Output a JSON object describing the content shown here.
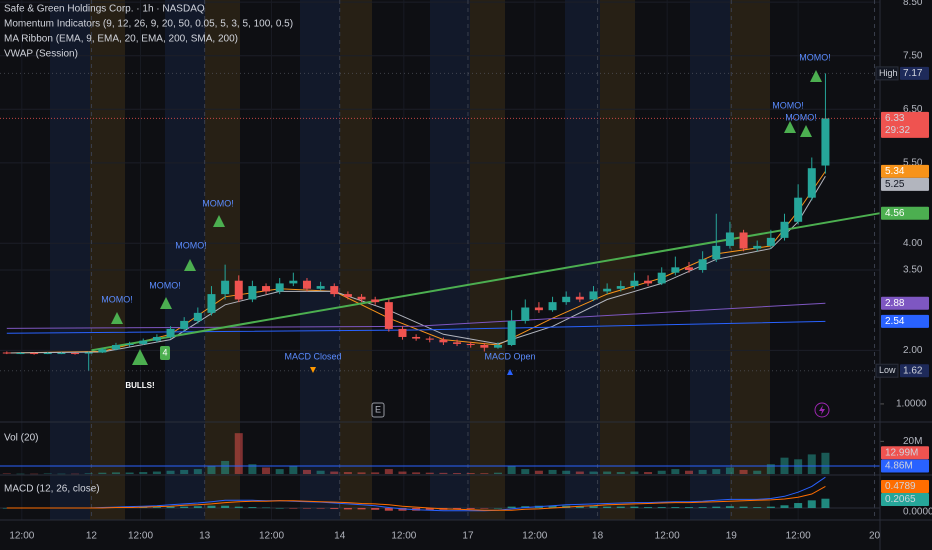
{
  "chart_data": [
    {
      "type": "candlestick",
      "title": "Safe & Green Holdings Corp. · 1h · NASDAQ",
      "indicators": [
        "Momentum Indicators (9, 12, 26, 9, 20, 50, 0.05, 5, 3, 5, 100, 0.5)",
        "MA Ribbon (EMA, 9, EMA, 20, EMA, 200, SMA, 200)",
        "VWAP (Session)"
      ],
      "up_color": "#26a69a",
      "down_color": "#ef5350",
      "open": [
        1.96,
        1.95,
        1.95,
        1.94,
        1.95,
        1.95,
        1.94,
        1.96,
        2.02,
        2.1,
        2.12,
        2.18,
        2.25,
        2.4,
        2.55,
        2.7,
        3.05,
        3.3,
        2.95,
        3.2,
        3.1,
        3.25,
        3.3,
        3.15,
        3.2,
        3.05,
        3.0,
        2.95,
        2.9,
        2.4,
        2.25,
        2.22,
        2.2,
        2.15,
        2.12,
        2.1,
        2.05,
        2.1,
        2.55,
        2.8,
        2.75,
        2.9,
        3.0,
        2.95,
        3.1,
        3.15,
        3.2,
        3.3,
        3.25,
        3.45,
        3.55,
        3.5,
        3.7,
        3.95,
        4.2,
        3.9,
        3.95,
        4.1,
        4.4,
        4.85,
        5.45
      ],
      "high": [
        1.98,
        1.97,
        1.96,
        1.97,
        1.97,
        1.96,
        1.98,
        2.05,
        2.14,
        2.16,
        2.22,
        2.3,
        2.45,
        2.62,
        2.8,
        3.2,
        3.6,
        3.4,
        3.3,
        3.25,
        3.35,
        3.45,
        3.35,
        3.28,
        3.25,
        3.1,
        3.05,
        3.0,
        2.95,
        2.45,
        2.3,
        2.26,
        2.24,
        2.2,
        2.16,
        2.14,
        2.15,
        2.75,
        2.95,
        2.9,
        3.0,
        3.1,
        3.08,
        3.2,
        3.25,
        3.3,
        3.45,
        3.4,
        3.55,
        3.75,
        3.65,
        3.85,
        4.55,
        4.4,
        4.25,
        4.05,
        4.25,
        4.55,
        5.1,
        5.6,
        7.17
      ],
      "low": [
        1.93,
        1.93,
        1.92,
        1.93,
        1.93,
        1.92,
        1.62,
        1.95,
        2.0,
        2.07,
        2.1,
        2.15,
        2.22,
        2.35,
        2.5,
        2.65,
        2.95,
        2.9,
        2.9,
        3.05,
        3.05,
        3.2,
        3.1,
        3.12,
        3.0,
        2.95,
        2.9,
        2.85,
        2.35,
        2.2,
        2.18,
        2.15,
        2.1,
        2.08,
        2.05,
        1.98,
        2.03,
        2.08,
        2.5,
        2.7,
        2.72,
        2.85,
        2.9,
        2.92,
        3.05,
        3.1,
        3.15,
        3.2,
        3.22,
        3.4,
        3.45,
        3.45,
        3.65,
        3.9,
        3.85,
        3.85,
        3.9,
        4.05,
        4.35,
        4.8,
        5.3
      ],
      "close": [
        1.95,
        1.95,
        1.94,
        1.95,
        1.95,
        1.94,
        1.96,
        2.02,
        2.1,
        2.12,
        2.18,
        2.25,
        2.4,
        2.55,
        2.7,
        3.05,
        3.3,
        2.95,
        3.2,
        3.1,
        3.25,
        3.3,
        3.15,
        3.2,
        3.05,
        3.0,
        2.95,
        2.9,
        2.4,
        2.25,
        2.22,
        2.2,
        2.15,
        2.12,
        2.1,
        2.05,
        2.1,
        2.55,
        2.8,
        2.75,
        2.9,
        3.0,
        2.95,
        3.1,
        3.15,
        3.2,
        3.3,
        3.25,
        3.45,
        3.55,
        3.5,
        3.7,
        3.95,
        4.2,
        3.9,
        3.95,
        4.1,
        4.4,
        4.85,
        5.4,
        6.33
      ],
      "xlim": [
        -0.5,
        64
      ],
      "xticks": [
        {
          "value": 1.1,
          "label": "12:00"
        },
        {
          "value": 6.2,
          "label": "12"
        },
        {
          "value": 9.8,
          "label": "12:00"
        },
        {
          "value": 14.5,
          "label": "13"
        },
        {
          "value": 19.4,
          "label": "12:00"
        },
        {
          "value": 24.4,
          "label": "14"
        },
        {
          "value": 29.1,
          "label": "12:00"
        },
        {
          "value": 33.8,
          "label": "17"
        },
        {
          "value": 38.7,
          "label": "12:00"
        },
        {
          "value": 43.3,
          "label": "18"
        },
        {
          "value": 48.4,
          "label": "12:00"
        },
        {
          "value": 53.1,
          "label": "19"
        },
        {
          "value": 58,
          "label": "12:00"
        },
        {
          "value": 63.6,
          "label": "20"
        }
      ],
      "ylim": [
        0.7,
        8.54
      ],
      "yticks": [
        {
          "value": 2,
          "label": "2.00"
        },
        {
          "value": 3.5,
          "label": "3.50"
        },
        {
          "value": 4,
          "label": "4.00"
        },
        {
          "value": 5.5,
          "label": "5.50"
        },
        {
          "value": 6.5,
          "label": "6.50"
        },
        {
          "value": 7.5,
          "label": "7.50"
        },
        {
          "value": 8.5,
          "label": "8.50"
        }
      ],
      "y2lim": [
        0.7,
        8.54
      ],
      "y2ticks": [
        {
          "value": 1,
          "label": "1.0000"
        }
      ],
      "grid": true,
      "overlays": [
        {
          "color": "#f7931a",
          "x": [
            0,
            7,
            12,
            16,
            20,
            24,
            28,
            32,
            36,
            40,
            44,
            48,
            52,
            56,
            58,
            60
          ],
          "values": [
            1.95,
            1.98,
            2.3,
            3.0,
            3.15,
            3.1,
            2.6,
            2.2,
            2.1,
            2.6,
            3.05,
            3.35,
            3.8,
            3.95,
            4.6,
            5.34
          ]
        },
        {
          "color": "#b2b5be",
          "x": [
            0,
            7,
            12,
            16,
            20,
            24,
            28,
            32,
            36,
            40,
            44,
            48,
            52,
            56,
            58,
            60
          ],
          "values": [
            1.95,
            1.97,
            2.2,
            2.85,
            3.1,
            3.1,
            2.75,
            2.3,
            2.12,
            2.45,
            2.95,
            3.25,
            3.7,
            3.9,
            4.4,
            5.25
          ]
        },
        {
          "color": "#7e57c2",
          "x": [
            0,
            30,
            60
          ],
          "values": [
            2.41,
            2.45,
            2.88
          ]
        },
        {
          "color": "#2962ff",
          "x": [
            0,
            30,
            60
          ],
          "values": [
            2.32,
            2.38,
            2.54
          ]
        }
      ],
      "trendline": {
        "color": "#4caf50",
        "x": [
          6.2,
          64
        ],
        "values": [
          2.0,
          4.56
        ]
      },
      "markers": {
        "high": {
          "tag": "High",
          "value": 7.17
        },
        "low": {
          "tag": "Low",
          "value": 1.62
        },
        "last": {
          "value": 6.33,
          "countdown": "29:32"
        }
      },
      "signals": [
        "MOMO!",
        "MOMO!",
        "MOMO!",
        "MOMO!",
        "MOMO!",
        "MOMO!",
        "MOMO!",
        "BULLS!",
        "4",
        "MACD Closed",
        "MACD Open",
        "E"
      ]
    },
    {
      "type": "bar",
      "title": "Vol (20)",
      "values": [
        0.3,
        0.2,
        0.2,
        0.3,
        0.2,
        0.2,
        0.4,
        0.8,
        1.0,
        0.9,
        1.2,
        1.5,
        2.0,
        2.5,
        3.0,
        5.0,
        8.0,
        25.0,
        6.0,
        4.0,
        3.0,
        5.0,
        2.5,
        2.0,
        1.5,
        1.2,
        1.0,
        1.0,
        3.0,
        1.5,
        1.0,
        0.8,
        0.7,
        0.6,
        0.6,
        0.5,
        0.8,
        5.0,
        3.0,
        2.0,
        2.5,
        2.0,
        1.5,
        1.5,
        1.5,
        1.2,
        1.5,
        1.2,
        2.0,
        3.0,
        2.0,
        2.5,
        3.0,
        4.0,
        2.5,
        2.0,
        6.0,
        10.0,
        9.0,
        12.0,
        12.99
      ],
      "value_labels": [
        null,
        null,
        null,
        null,
        null,
        null,
        null,
        null,
        null,
        null,
        null,
        null,
        null,
        null,
        null,
        null,
        null,
        null,
        null,
        null,
        null,
        null,
        null,
        null,
        null,
        null,
        null,
        null,
        null,
        null,
        null,
        null,
        null,
        null,
        null,
        null,
        null,
        null,
        null,
        null,
        null,
        null,
        null,
        null,
        null,
        null,
        null,
        null,
        null,
        null,
        null,
        null,
        null,
        null,
        null,
        null,
        null,
        null,
        null,
        null,
        "12.99M"
      ],
      "ylim": [
        0,
        30
      ],
      "yticks": [
        {
          "value": 20,
          "label": "20M"
        }
      ],
      "ma": {
        "value": 4.86,
        "label": "4.86M",
        "color": "#2962ff"
      }
    },
    {
      "type": "macd",
      "title": "MACD (12, 26, close)",
      "macd": [
        0,
        0,
        0,
        0,
        0,
        0,
        0,
        0.01,
        0.02,
        0.03,
        0.04,
        0.05,
        0.07,
        0.09,
        0.11,
        0.14,
        0.17,
        0.17,
        0.17,
        0.16,
        0.16,
        0.15,
        0.14,
        0.13,
        0.11,
        0.09,
        0.07,
        0.05,
        0.01,
        -0.02,
        -0.04,
        -0.05,
        -0.06,
        -0.06,
        -0.06,
        -0.06,
        -0.05,
        -0.02,
        0.01,
        0.03,
        0.05,
        0.07,
        0.08,
        0.09,
        0.1,
        0.11,
        0.12,
        0.12,
        0.13,
        0.14,
        0.14,
        0.15,
        0.17,
        0.19,
        0.19,
        0.19,
        0.21,
        0.26,
        0.35,
        0.48,
        0.6854
      ],
      "signal": [
        0,
        0,
        0,
        0,
        0,
        0,
        0,
        0,
        0.01,
        0.01,
        0.02,
        0.03,
        0.04,
        0.06,
        0.07,
        0.09,
        0.12,
        0.14,
        0.15,
        0.15,
        0.16,
        0.16,
        0.15,
        0.14,
        0.13,
        0.12,
        0.1,
        0.09,
        0.07,
        0.04,
        0.02,
        0,
        -0.02,
        -0.03,
        -0.04,
        -0.05,
        -0.05,
        -0.05,
        -0.03,
        -0.02,
        0,
        0.02,
        0.04,
        0.05,
        0.07,
        0.08,
        0.09,
        0.1,
        0.11,
        0.12,
        0.12,
        0.13,
        0.14,
        0.15,
        0.16,
        0.17,
        0.18,
        0.2,
        0.24,
        0.31,
        0.4789
      ],
      "histogram": [
        0,
        0,
        0,
        0,
        0,
        0,
        0,
        0.01,
        0.01,
        0.02,
        0.02,
        0.02,
        0.03,
        0.03,
        0.04,
        0.05,
        0.05,
        0.03,
        0.02,
        0.01,
        0,
        -0.01,
        -0.01,
        -0.01,
        -0.02,
        -0.03,
        -0.03,
        -0.04,
        -0.06,
        -0.06,
        -0.06,
        -0.05,
        -0.04,
        -0.03,
        -0.02,
        -0.01,
        0,
        0.03,
        0.04,
        0.05,
        0.05,
        0.05,
        0.04,
        0.04,
        0.03,
        0.03,
        0.03,
        0.02,
        0.02,
        0.02,
        0.02,
        0.02,
        0.03,
        0.04,
        0.03,
        0.02,
        0.03,
        0.06,
        0.11,
        0.17,
        0.2065
      ],
      "colors": {
        "macd": "#2962ff",
        "signal": "#ff6d00",
        "hist_up": "#26a69a",
        "hist_down": "#ef5350"
      },
      "ylim": [
        -0.178,
        0.711
      ],
      "yticks": [
        {
          "value": 0,
          "label": "0.0000"
        }
      ]
    }
  ]
}
